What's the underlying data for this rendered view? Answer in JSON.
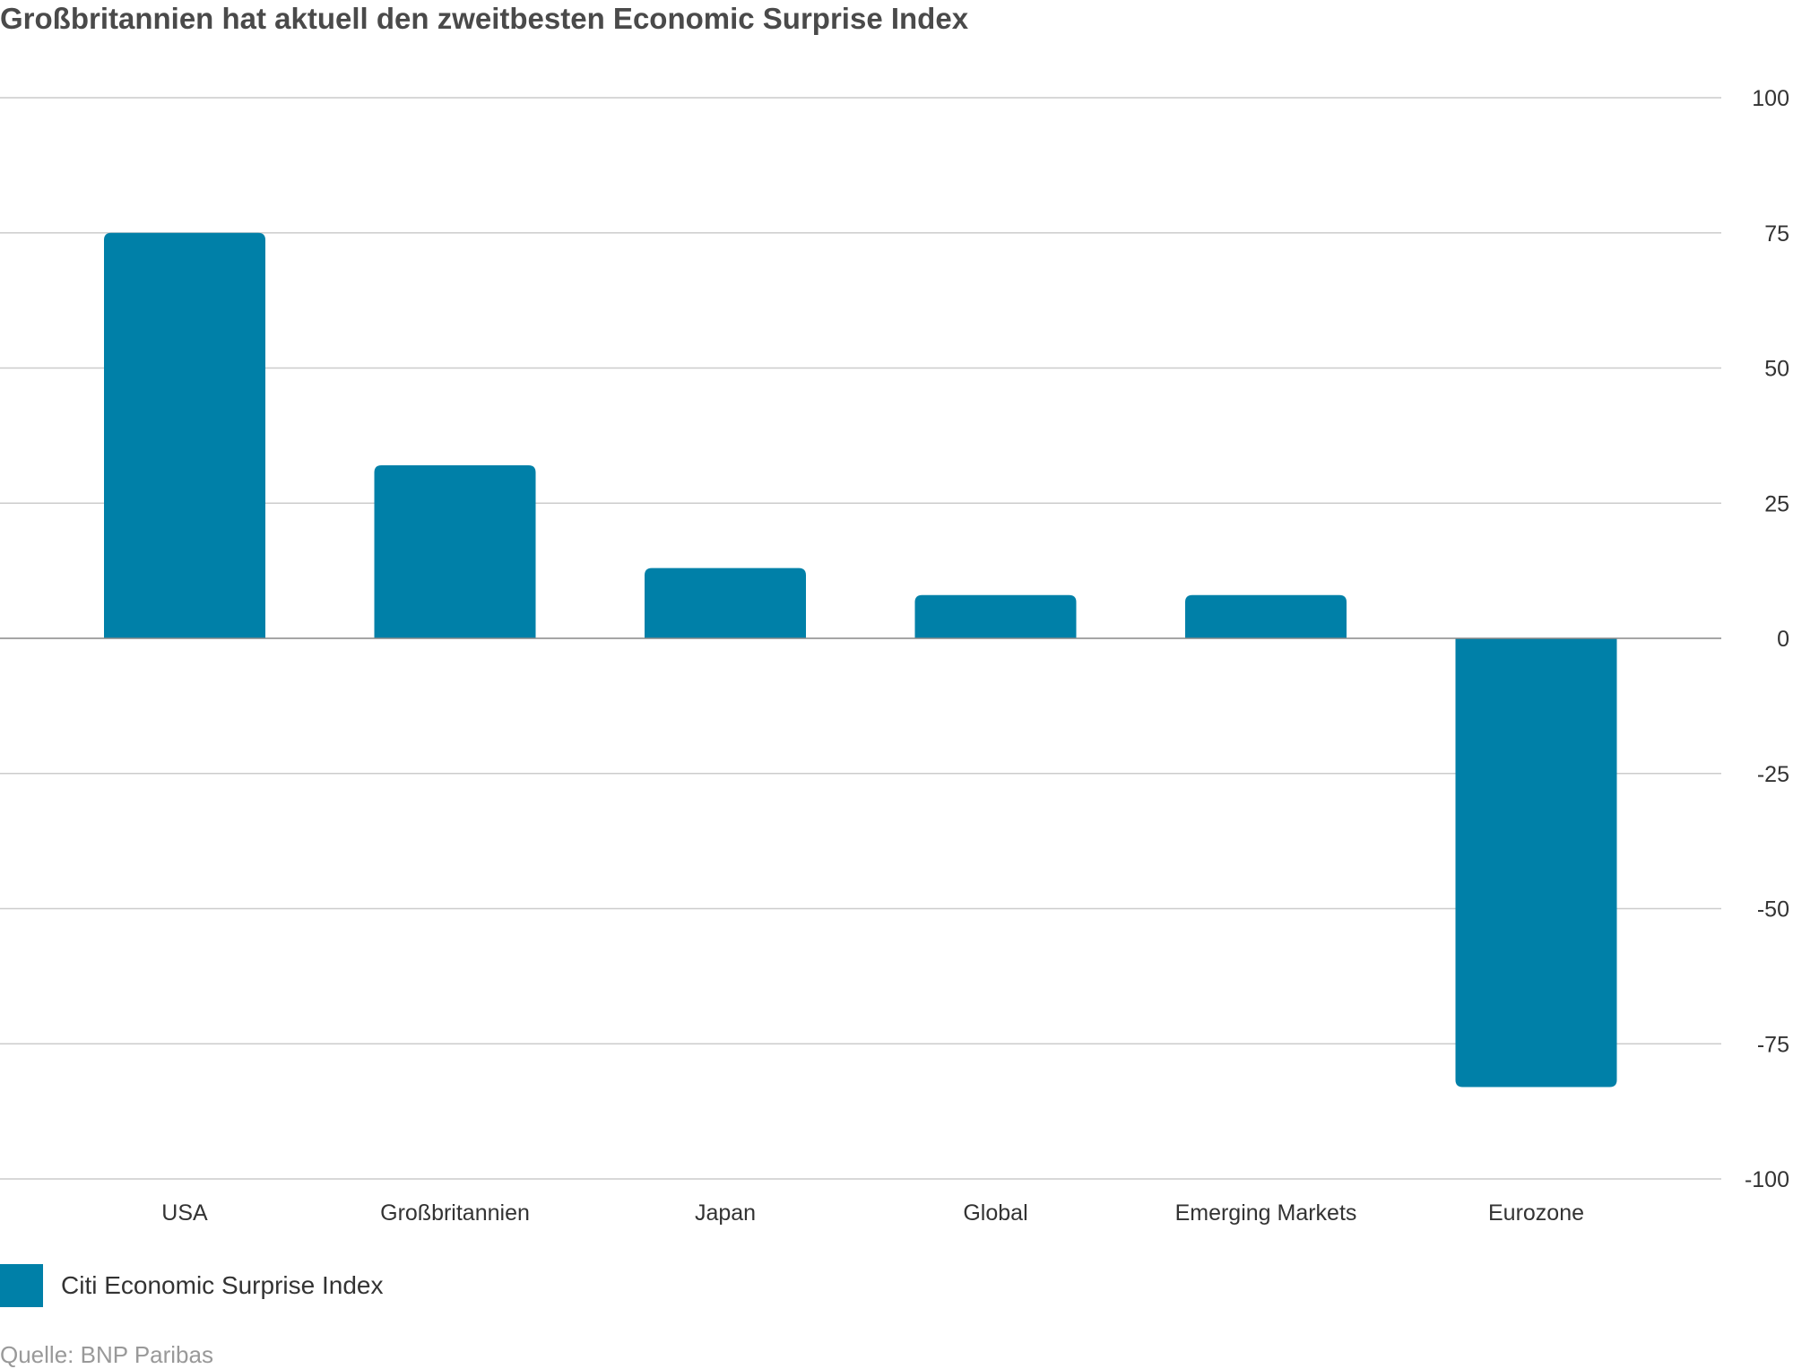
{
  "chart_data": {
    "type": "bar",
    "title": "Großbritannien hat aktuell den zweitbesten Economic Surprise Index",
    "categories": [
      "USA",
      "Großbritannien",
      "Japan",
      "Global",
      "Emerging Markets",
      "Eurozone"
    ],
    "series": [
      {
        "name": "Citi Economic Surprise Index",
        "values": [
          75,
          32,
          13,
          8,
          8,
          -83
        ]
      }
    ],
    "ylim": [
      -100,
      100
    ],
    "yticks": [
      "100",
      "75",
      "50",
      "25",
      "0",
      "-25",
      "-50",
      "-75",
      "-100"
    ],
    "grid": true,
    "y_axis_side": "right",
    "legend_position": "bottom-left",
    "source": "Quelle: BNP Paribas"
  },
  "colors": {
    "bar": "#0080a8",
    "grid": "#cccccc",
    "zero_line": "#888888"
  }
}
